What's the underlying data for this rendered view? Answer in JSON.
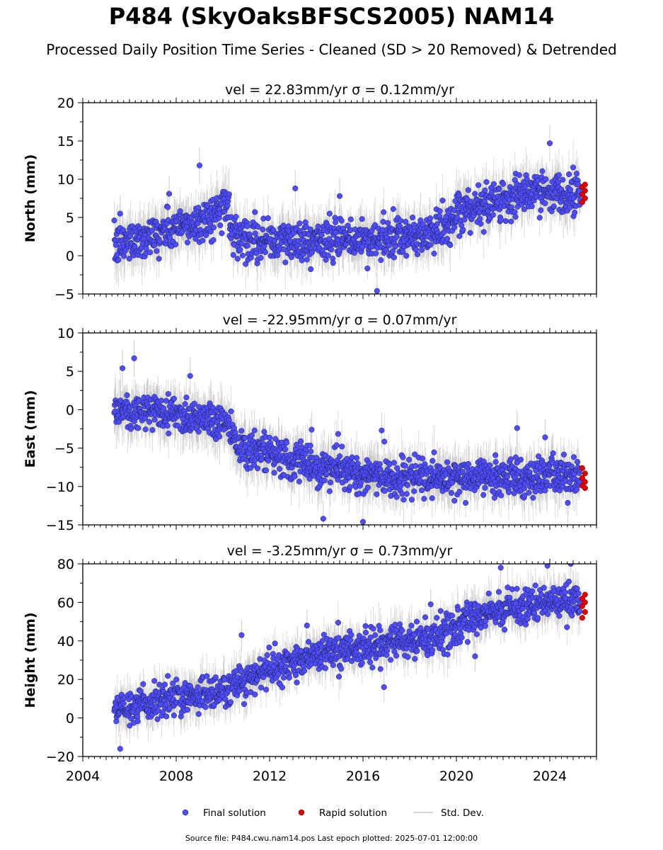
{
  "title": "P484 (SkyOaksBFSCS2005) NAM14",
  "subtitle": "Processed Daily Position Time Series - Cleaned (SD > 20 Removed) & Detrended",
  "footer": {
    "source_label": "Source file: P484.cwu.nam14.pos",
    "epoch_label": "Last epoch plotted: 2025-07-01 12:00:00"
  },
  "legend": {
    "placement": "bottom-center",
    "items": [
      {
        "label": "Final solution",
        "color": "#4d4dff",
        "marker": "dot"
      },
      {
        "label": "Rapid solution",
        "color": "#e00000",
        "marker": "dot"
      },
      {
        "label": "Std. Dev.",
        "color": "#c8c8c8",
        "marker": "line"
      }
    ]
  },
  "chart_data": [
    {
      "type": "scatter",
      "panel_title": "vel = 22.83mm/yr   σ = 0.12mm/yr",
      "ylabel": "North (mm)",
      "xlim": [
        2004,
        2026
      ],
      "ylim": [
        -5,
        20
      ],
      "yticks": [
        -5,
        0,
        5,
        10,
        15,
        20
      ],
      "xticks": [],
      "series": [
        {
          "name": "Final solution",
          "color": "#4d4dff",
          "trend_x": [
            2005.35,
            2006,
            2008,
            2009.5,
            2010.2,
            2010.4,
            2012,
            2014,
            2016,
            2018,
            2019.5,
            2020.5,
            2022,
            2024,
            2025.3
          ],
          "trend_y": [
            1.0,
            2.0,
            3.5,
            5.0,
            7.0,
            3.0,
            1.8,
            2.0,
            2.0,
            2.3,
            3.5,
            6.0,
            7.5,
            8.5,
            8.3
          ],
          "scatter": 1.3,
          "spread": 3.0,
          "outliers": [
            [
              2009.0,
              11.8
            ],
            [
              2013.1,
              8.8
            ],
            [
              2016.6,
              -4.6
            ],
            [
              2024.0,
              14.7
            ],
            [
              2005.6,
              5.5
            ],
            [
              2007.7,
              8.1
            ],
            [
              2015.0,
              7.8
            ]
          ]
        },
        {
          "name": "Rapid solution",
          "color": "#e00000",
          "x_range": [
            2025.35,
            2025.55
          ],
          "y": [
            7.0,
            7.5,
            8.0,
            8.5,
            9.0,
            9.3
          ]
        }
      ]
    },
    {
      "type": "scatter",
      "panel_title": "vel = -22.95mm/yr   σ = 0.07mm/yr",
      "ylabel": "East (mm)",
      "xlim": [
        2004,
        2026
      ],
      "ylim": [
        -15,
        10
      ],
      "yticks": [
        -15,
        -10,
        -5,
        0,
        5,
        10
      ],
      "xticks": [],
      "series": [
        {
          "name": "Final solution",
          "color": "#4d4dff",
          "trend_x": [
            2005.35,
            2008,
            2010.2,
            2010.6,
            2012,
            2014,
            2016,
            2018,
            2020,
            2022,
            2024,
            2025.3
          ],
          "trend_y": [
            0.0,
            -0.5,
            -1.5,
            -4.5,
            -6.0,
            -7.3,
            -8.5,
            -9.0,
            -9.0,
            -8.8,
            -8.7,
            -8.5
          ],
          "scatter": 1.2,
          "spread": 3.0,
          "outliers": [
            [
              2005.7,
              5.4
            ],
            [
              2006.2,
              6.7
            ],
            [
              2008.6,
              4.4
            ],
            [
              2014.3,
              -14.2
            ],
            [
              2016.0,
              -14.6
            ],
            [
              2022.6,
              -2.4
            ],
            [
              2023.8,
              -3.6
            ],
            [
              2013.8,
              -2.6
            ],
            [
              2016.8,
              -2.7
            ]
          ]
        },
        {
          "name": "Rapid solution",
          "color": "#e00000",
          "x_range": [
            2025.35,
            2025.55
          ],
          "y": [
            -7.6,
            -8.3,
            -8.9,
            -9.4,
            -9.9,
            -10.2
          ]
        }
      ]
    },
    {
      "type": "scatter",
      "panel_title": "vel = -3.25mm/yr   σ = 0.73mm/yr",
      "ylabel": "Height (mm)",
      "xlim": [
        2004,
        2026
      ],
      "ylim": [
        -20,
        80
      ],
      "yticks": [
        -20,
        0,
        20,
        40,
        60,
        80
      ],
      "xticks": [
        2004,
        2008,
        2012,
        2016,
        2020,
        2024
      ],
      "series": [
        {
          "name": "Final solution",
          "color": "#4d4dff",
          "trend_x": [
            2005.35,
            2007,
            2009,
            2010.2,
            2011,
            2012,
            2014,
            2016,
            2018,
            2019.5,
            2020.5,
            2022,
            2024,
            2025.3
          ],
          "trend_y": [
            3.0,
            8.0,
            12.0,
            15.0,
            20.0,
            26.0,
            33.0,
            37.0,
            40.0,
            43.0,
            51.0,
            57.0,
            60.0,
            60.0
          ],
          "scatter": 4.5,
          "spread": 10.0,
          "outliers": [
            [
              2005.6,
              -16.0
            ],
            [
              2010.8,
              43.0
            ],
            [
              2013.6,
              48.0
            ],
            [
              2018.9,
              59.0
            ],
            [
              2021.9,
              78.0
            ],
            [
              2023.9,
              79.0
            ],
            [
              2024.9,
              80.0
            ],
            [
              2016.9,
              16.0
            ],
            [
              2020.8,
              32.0
            ]
          ]
        },
        {
          "name": "Rapid solution",
          "color": "#e00000",
          "x_range": [
            2025.35,
            2025.55
          ],
          "y": [
            52,
            55,
            58,
            60,
            62,
            64
          ]
        }
      ]
    }
  ]
}
